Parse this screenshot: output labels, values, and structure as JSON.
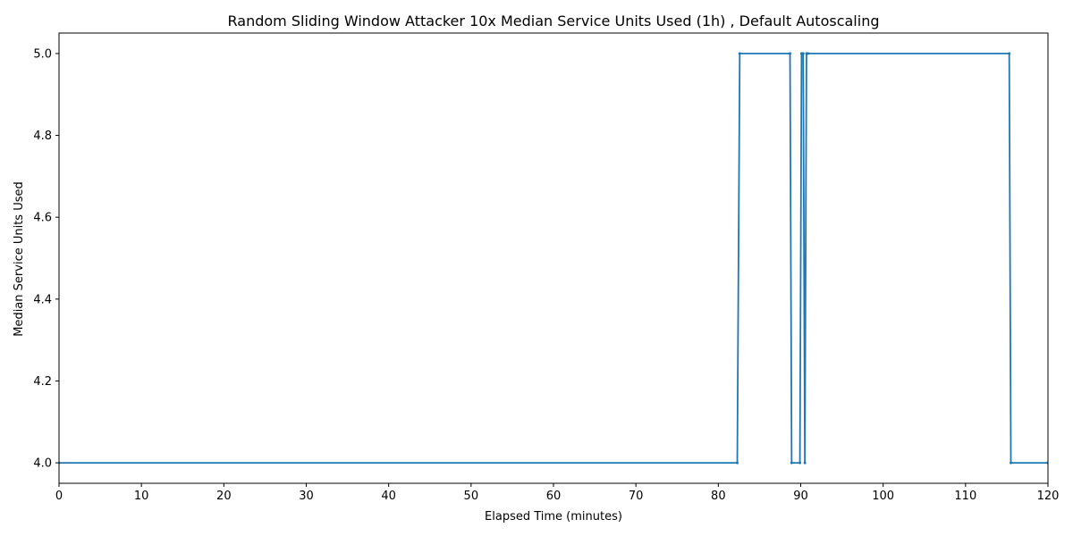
{
  "chart_data": {
    "type": "line",
    "title": "Random Sliding Window Attacker 10x Median Service Units Used (1h) , Default Autoscaling",
    "xlabel": "Elapsed Time (minutes)",
    "ylabel": "Median Service Units Used",
    "xlim": [
      0,
      120
    ],
    "ylim": [
      3.95,
      5.05
    ],
    "x_ticks": [
      0,
      10,
      20,
      30,
      40,
      50,
      60,
      70,
      80,
      90,
      100,
      110,
      120
    ],
    "y_ticks": [
      4.0,
      4.2,
      4.4,
      4.6,
      4.8,
      5.0
    ],
    "y_tick_labels": [
      "4.0",
      "4.2",
      "4.4",
      "4.6",
      "4.8",
      "5.0"
    ],
    "grid": false,
    "series": [
      {
        "color": "#1f77b4",
        "marker": "small dots",
        "x": [
          0,
          82.3,
          82.6,
          88.7,
          88.9,
          89.9,
          90.1,
          90.3,
          90.5,
          90.7,
          90.9,
          115.3,
          115.5,
          120
        ],
        "y": [
          4.0,
          4.0,
          5.0,
          5.0,
          4.0,
          4.0,
          5.0,
          5.0,
          4.0,
          5.0,
          5.0,
          5.0,
          4.0,
          4.0
        ]
      }
    ]
  }
}
